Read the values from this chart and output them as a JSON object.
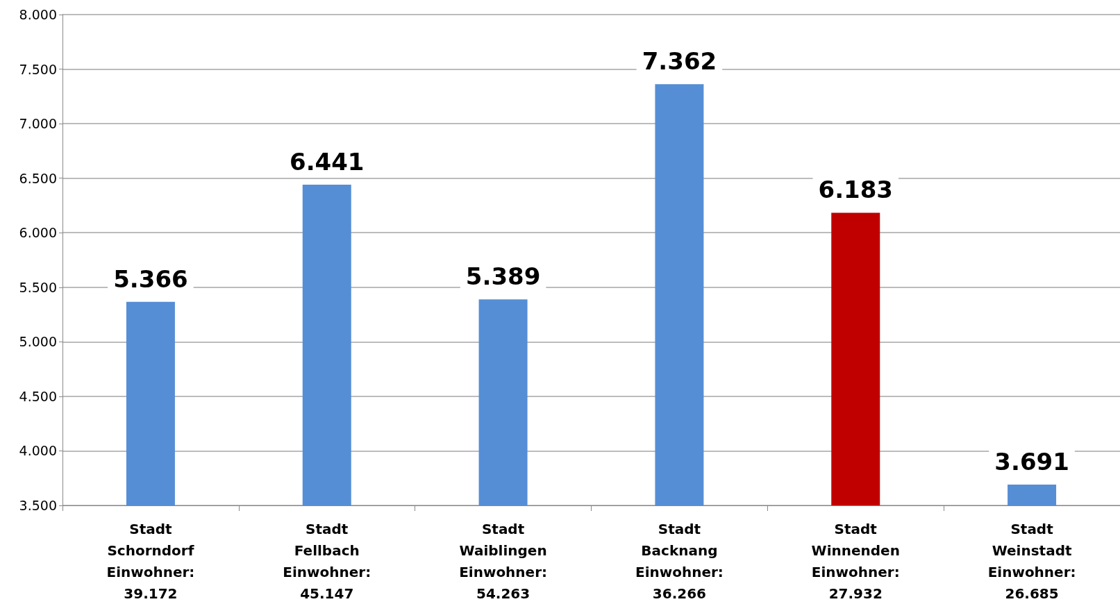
{
  "chart_data": {
    "type": "bar",
    "categories": [
      "Stadt\nSchorndorf\nEinwohner:\n39.172",
      "Stadt\nFellbach\nEinwohner:\n45.147",
      "Stadt\nWaiblingen\nEinwohner:\n54.263",
      "Stadt\nBacknang\nEinwohner:\n36.266",
      "Stadt\nWinnenden\nEinwohner:\n27.932",
      "Stadt\nWeinstadt\nEinwohner:\n26.685"
    ],
    "values": [
      5366,
      6441,
      5389,
      7362,
      6183,
      3691
    ],
    "value_labels": [
      "5.366",
      "6.441",
      "5.389",
      "7.362",
      "6.183",
      "3.691"
    ],
    "colors": [
      "#558ed5",
      "#558ed5",
      "#558ed5",
      "#558ed5",
      "#c00000",
      "#558ed5"
    ],
    "ylim": [
      3500,
      8000
    ],
    "yticks": [
      {
        "value": 3500,
        "label": "3.500"
      },
      {
        "value": 4000,
        "label": "4.000"
      },
      {
        "value": 4500,
        "label": "4.500"
      },
      {
        "value": 5000,
        "label": "5.000"
      },
      {
        "value": 5500,
        "label": "5.500"
      },
      {
        "value": 6000,
        "label": "6.000"
      },
      {
        "value": 6500,
        "label": "6.500"
      },
      {
        "value": 7000,
        "label": "7.000"
      },
      {
        "value": 7500,
        "label": "7.500"
      },
      {
        "value": 8000,
        "label": "8.000"
      }
    ],
    "grid": "y"
  }
}
